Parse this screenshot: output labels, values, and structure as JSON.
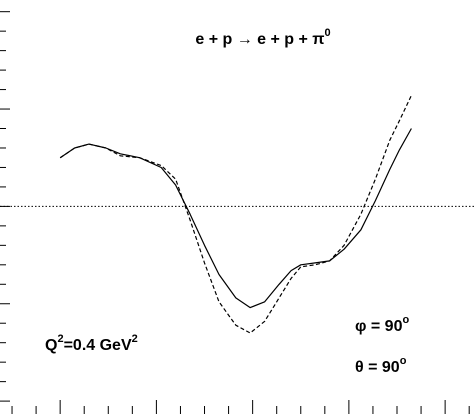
{
  "chart_data": {
    "type": "line",
    "title": [
      {
        "text": "e + p → e + p + π",
        "sup": false
      },
      {
        "text": "0",
        "sup": true
      }
    ],
    "annotations": [
      [
        {
          "text": "Q",
          "sup": false
        },
        {
          "text": "2",
          "sup": true
        },
        {
          "text": "=0.4 GeV",
          "sup": false
        },
        {
          "text": "2",
          "sup": true
        }
      ],
      [
        {
          "text": "φ =  90",
          "sup": false
        },
        {
          "text": "o",
          "sup": true
        }
      ],
      [
        {
          "text": "θ =  90",
          "sup": false
        },
        {
          "text": "o",
          "sup": true
        }
      ]
    ],
    "x": [
      2.0,
      2.6,
      3.2,
      3.9,
      4.5,
      5.3,
      6.2,
      6.8,
      7.4,
      8.0,
      8.6,
      9.3,
      9.9,
      10.5,
      11.1,
      11.6,
      12.0,
      12.6,
      13.2,
      13.8,
      14.5,
      15.1,
      15.7,
      16.1,
      16.6
    ],
    "series": [
      {
        "color": "#000000",
        "dash": false,
        "values": [
          2.5,
          3.0,
          3.2,
          3.0,
          2.7,
          2.5,
          2.0,
          1.1,
          -0.4,
          -2.0,
          -3.5,
          -4.7,
          -5.2,
          -4.9,
          -4.0,
          -3.3,
          -3.0,
          -2.9,
          -2.8,
          -2.2,
          -1.2,
          0.3,
          1.9,
          2.9,
          4.0
        ]
      },
      {
        "color": "#000000",
        "dash": true,
        "values": [
          2.5,
          3.0,
          3.2,
          3.0,
          2.6,
          2.5,
          2.1,
          1.4,
          -0.7,
          -2.9,
          -4.9,
          -6.1,
          -6.5,
          -5.9,
          -4.7,
          -3.7,
          -3.1,
          -3.0,
          -2.8,
          -2.0,
          -0.4,
          1.4,
          3.4,
          4.4,
          5.7
        ]
      }
    ],
    "reference_line": 0,
    "xlim": [
      -0.5,
      19.2
    ],
    "ylim": [
      -10.2,
      10.6
    ],
    "xticks": [
      0,
      1,
      2,
      3,
      4,
      5,
      6,
      7,
      8,
      9,
      10,
      11,
      12,
      13,
      14,
      15,
      16,
      17,
      18,
      19
    ],
    "yticks": [
      -10,
      -9,
      -8,
      -7,
      -6,
      -5,
      -4,
      -3,
      -2,
      -1,
      0,
      1,
      2,
      3,
      4,
      5,
      6,
      7,
      8,
      9,
      10
    ],
    "grid": false
  }
}
